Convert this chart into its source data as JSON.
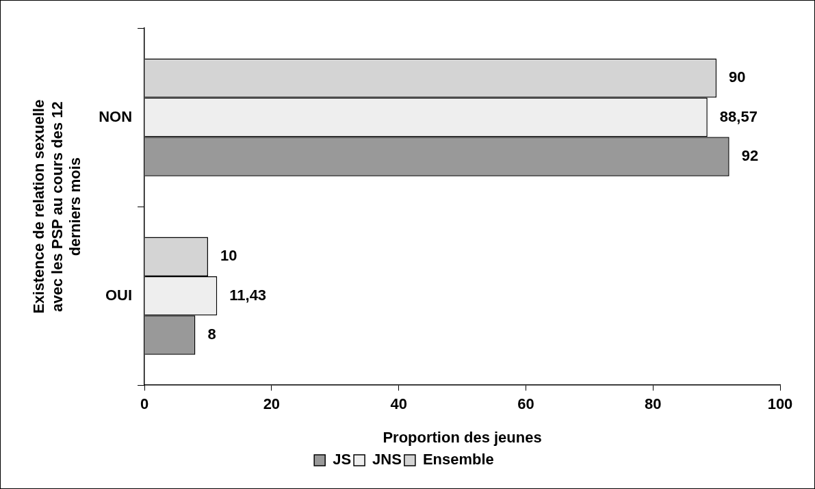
{
  "chart_data": {
    "type": "bar",
    "orientation": "horizontal",
    "xlabel": "Proportion des jeunes",
    "ylabel": "Existence de relation sexuelle avec les PSP au cours des 12 derniers mois",
    "categories": [
      "NON",
      "OUI"
    ],
    "series": [
      {
        "name": "JS",
        "color": "#999999",
        "values": [
          92,
          8
        ],
        "value_labels": [
          "92",
          "8"
        ]
      },
      {
        "name": "JNS",
        "color": "#eeeeee",
        "values": [
          88.57,
          11.43
        ],
        "value_labels": [
          "88,57",
          "11,43"
        ]
      },
      {
        "name": "Ensemble",
        "color": "#d4d4d4",
        "values": [
          90,
          10
        ],
        "value_labels": [
          "90",
          "10"
        ]
      }
    ],
    "xlim": [
      0,
      100
    ],
    "xticks": [
      0,
      20,
      40,
      60,
      80,
      100
    ],
    "grid": false,
    "legend": "bottom"
  }
}
